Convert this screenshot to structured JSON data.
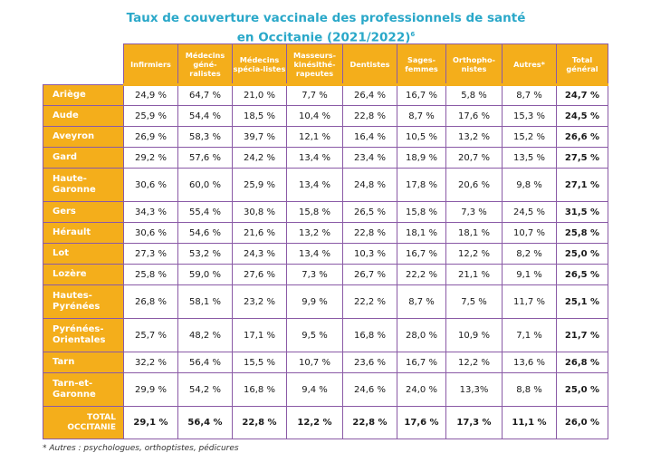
{
  "title": {
    "line1": "Taux de couverture vaccinale des professionnels de santé",
    "line2": "en Occitanie (2021/2022)",
    "note_mark": "6"
  },
  "columns": [
    "Infirmiers",
    "Médecins géné-ralistes",
    "Médecins spécia-listes",
    "Masseurs-kinésithé-rapeutes",
    "Dentistes",
    "Sages-femmes",
    "Orthopho-nistes",
    "Autres*",
    "Total général"
  ],
  "rows": [
    {
      "name": "Ariège",
      "values": [
        "24,9 %",
        "64,7 %",
        "21,0 %",
        "7,7 %",
        "26,4 %",
        "16,7 %",
        "5,8 %",
        "8,7 %",
        "24,7 %"
      ]
    },
    {
      "name": "Aude",
      "values": [
        "25,9 %",
        "54,4 %",
        "18,5 %",
        "10,4 %",
        "22,8 %",
        "8,7 %",
        "17,6 %",
        "15,3 %",
        "24,5 %"
      ]
    },
    {
      "name": "Aveyron",
      "values": [
        "26,9 %",
        "58,3 %",
        "39,7 %",
        "12,1 %",
        "16,4 %",
        "10,5 %",
        "13,2 %",
        "15,2 %",
        "26,6 %"
      ]
    },
    {
      "name": "Gard",
      "values": [
        "29,2 %",
        "57,6 %",
        "24,2 %",
        "13,4 %",
        "23,4 %",
        "18,9 %",
        "20,7 %",
        "13,5 %",
        "27,5 %"
      ]
    },
    {
      "name": "Haute-Garonne",
      "values": [
        "30,6 %",
        "60,0 %",
        "25,9 %",
        "13,4 %",
        "24,8 %",
        "17,8 %",
        "20,6 %",
        "9,8 %",
        "27,1 %"
      ]
    },
    {
      "name": "Gers",
      "values": [
        "34,3 %",
        "55,4 %",
        "30,8 %",
        "15,8 %",
        "26,5 %",
        "15,8 %",
        "7,3 %",
        "24,5 %",
        "31,5 %"
      ]
    },
    {
      "name": "Hérault",
      "values": [
        "30,6 %",
        "54,6 %",
        "21,6 %",
        "13,2 %",
        "22,8 %",
        "18,1 %",
        "18,1 %",
        "10,7 %",
        "25,8 %"
      ]
    },
    {
      "name": "Lot",
      "values": [
        "27,3 %",
        "53,2 %",
        "24,3 %",
        "13,4 %",
        "10,3 %",
        "16,7 %",
        "12,2 %",
        "8,2 %",
        "25,0 %"
      ]
    },
    {
      "name": "Lozère",
      "values": [
        "25,8 %",
        "59,0 %",
        "27,6 %",
        "7,3 %",
        "26,7 %",
        "22,2 %",
        "21,1 %",
        "9,1 %",
        "26,5 %"
      ]
    },
    {
      "name": "Hautes-Pyrénées",
      "values": [
        "26,8 %",
        "58,1 %",
        "23,2 %",
        "9,9 %",
        "22,2 %",
        "8,7 %",
        "7,5 %",
        "11,7 %",
        "25,1 %"
      ]
    },
    {
      "name": "Pyrénées-Orientales",
      "values": [
        "25,7 %",
        "48,2 %",
        "17,1 %",
        "9,5 %",
        "16,8 %",
        "28,0 %",
        "10,9 %",
        "7,1 %",
        "21,7 %"
      ]
    },
    {
      "name": "Tarn",
      "values": [
        "32,2 %",
        "56,4 %",
        "15,5 %",
        "10,7 %",
        "23,6 %",
        "16,7 %",
        "12,2 %",
        "13,6 %",
        "26,8 %"
      ]
    },
    {
      "name": "Tarn-et-Garonne",
      "values": [
        "29,9 %",
        "54,2 %",
        "16,8 %",
        "9,4 %",
        "24,6 %",
        "24,0 %",
        "13,3%",
        "8,8 %",
        "25,0 %"
      ]
    },
    {
      "name": "TOTAL OCCITANIE",
      "values": [
        "29,1 %",
        "56,4 %",
        "22,8 %",
        "12,2 %",
        "22,8 %",
        "17,6 %",
        "17,3 %",
        "11,1 %",
        "26,0 %"
      ],
      "total": true
    }
  ],
  "footnote": "* Autres : psychologues, orthoptistes, pédicures",
  "colors": {
    "title": "#2aa8c9",
    "header_fill": "#f4ae1b",
    "grid": "#8a5aa6"
  }
}
